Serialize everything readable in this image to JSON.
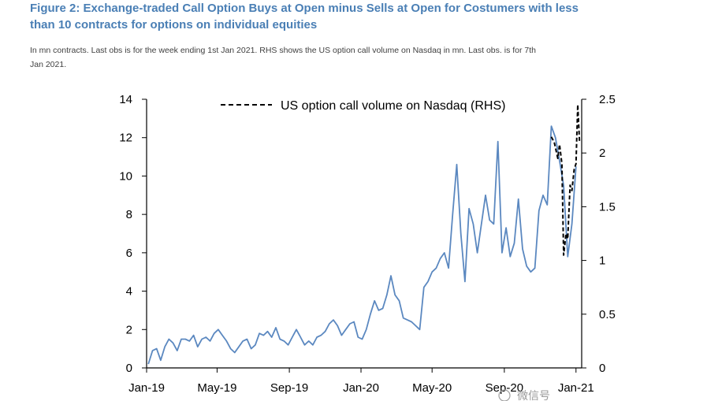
{
  "header": {
    "title_line1": "Figure 2: Exchange-traded Call Option Buys at Open minus Sells at Open for Costumers with less",
    "title_line2": "than 10 contracts for options on individual equities",
    "subtitle_line1": "In mn contracts. Last obs is for the week ending 1st Jan 2021. RHS shows the US option call volume on Nasdaq in mn. Last obs. is for 7th",
    "subtitle_line2": "Jan 2021."
  },
  "watermark": "微信号",
  "colors": {
    "series1": "#5b88c0",
    "series2": "#000000",
    "axis": "#000000"
  },
  "chart_data": {
    "type": "line",
    "title": "Figure 2: Exchange-traded Call Option Buys at Open minus Sells at Open for Costumers with less than 10 contracts for options on individual equities",
    "legend": {
      "placement": "top-center"
    },
    "grid": false,
    "x_range": [
      "2019-01-01",
      "2021-01-08"
    ],
    "x_ticks": [
      {
        "label": "Jan-19",
        "date": "2019-01-01"
      },
      {
        "label": "May-19",
        "date": "2019-05-01"
      },
      {
        "label": "Sep-19",
        "date": "2019-09-01"
      },
      {
        "label": "Jan-20",
        "date": "2020-01-01"
      },
      {
        "label": "May-20",
        "date": "2020-05-01"
      },
      {
        "label": "Sep-20",
        "date": "2020-09-01"
      },
      {
        "label": "Jan-21",
        "date": "2021-01-01"
      }
    ],
    "y_left": {
      "range": [
        0,
        14
      ],
      "ticks": [
        0,
        2,
        4,
        6,
        8,
        10,
        12,
        14
      ]
    },
    "y_right": {
      "range": [
        0,
        2.5
      ],
      "ticks": [
        "0",
        "0.5",
        "1",
        "1.5",
        "2",
        "2.5"
      ]
    },
    "series": [
      {
        "axis": "left",
        "style": "solid",
        "points": [
          [
            "2019-01-04",
            0.2
          ],
          [
            "2019-01-11",
            0.9
          ],
          [
            "2019-01-18",
            1.0
          ],
          [
            "2019-01-25",
            0.4
          ],
          [
            "2019-02-01",
            1.1
          ],
          [
            "2019-02-08",
            1.5
          ],
          [
            "2019-02-15",
            1.3
          ],
          [
            "2019-02-22",
            0.9
          ],
          [
            "2019-03-01",
            1.5
          ],
          [
            "2019-03-08",
            1.5
          ],
          [
            "2019-03-15",
            1.4
          ],
          [
            "2019-03-22",
            1.7
          ],
          [
            "2019-03-29",
            1.1
          ],
          [
            "2019-04-05",
            1.5
          ],
          [
            "2019-04-12",
            1.6
          ],
          [
            "2019-04-19",
            1.4
          ],
          [
            "2019-04-26",
            1.8
          ],
          [
            "2019-05-03",
            2.0
          ],
          [
            "2019-05-10",
            1.7
          ],
          [
            "2019-05-17",
            1.4
          ],
          [
            "2019-05-24",
            1.0
          ],
          [
            "2019-05-31",
            0.8
          ],
          [
            "2019-06-07",
            1.1
          ],
          [
            "2019-06-14",
            1.4
          ],
          [
            "2019-06-21",
            1.5
          ],
          [
            "2019-06-28",
            1.0
          ],
          [
            "2019-07-05",
            1.2
          ],
          [
            "2019-07-12",
            1.8
          ],
          [
            "2019-07-19",
            1.7
          ],
          [
            "2019-07-26",
            1.9
          ],
          [
            "2019-08-02",
            1.6
          ],
          [
            "2019-08-09",
            2.1
          ],
          [
            "2019-08-16",
            1.5
          ],
          [
            "2019-08-23",
            1.4
          ],
          [
            "2019-08-30",
            1.2
          ],
          [
            "2019-09-06",
            1.6
          ],
          [
            "2019-09-13",
            2.0
          ],
          [
            "2019-09-20",
            1.6
          ],
          [
            "2019-09-27",
            1.2
          ],
          [
            "2019-10-04",
            1.4
          ],
          [
            "2019-10-11",
            1.2
          ],
          [
            "2019-10-18",
            1.6
          ],
          [
            "2019-10-25",
            1.7
          ],
          [
            "2019-11-01",
            1.9
          ],
          [
            "2019-11-08",
            2.3
          ],
          [
            "2019-11-15",
            2.5
          ],
          [
            "2019-11-22",
            2.2
          ],
          [
            "2019-11-29",
            1.7
          ],
          [
            "2019-12-06",
            2.0
          ],
          [
            "2019-12-13",
            2.3
          ],
          [
            "2019-12-20",
            2.4
          ],
          [
            "2019-12-27",
            1.6
          ],
          [
            "2020-01-03",
            1.5
          ],
          [
            "2020-01-10",
            2.0
          ],
          [
            "2020-01-17",
            2.8
          ],
          [
            "2020-01-24",
            3.5
          ],
          [
            "2020-01-31",
            3.0
          ],
          [
            "2020-02-07",
            3.1
          ],
          [
            "2020-02-14",
            3.8
          ],
          [
            "2020-02-21",
            4.8
          ],
          [
            "2020-02-28",
            3.8
          ],
          [
            "2020-03-06",
            3.5
          ],
          [
            "2020-03-13",
            2.6
          ],
          [
            "2020-03-20",
            2.5
          ],
          [
            "2020-03-27",
            2.4
          ],
          [
            "2020-04-03",
            2.2
          ],
          [
            "2020-04-10",
            2.0
          ],
          [
            "2020-04-17",
            4.2
          ],
          [
            "2020-04-24",
            4.5
          ],
          [
            "2020-05-01",
            5.0
          ],
          [
            "2020-05-08",
            5.2
          ],
          [
            "2020-05-15",
            5.7
          ],
          [
            "2020-05-22",
            6.0
          ],
          [
            "2020-05-29",
            5.2
          ],
          [
            "2020-06-05",
            8.0
          ],
          [
            "2020-06-12",
            10.6
          ],
          [
            "2020-06-19",
            7.0
          ],
          [
            "2020-06-26",
            4.5
          ],
          [
            "2020-07-03",
            8.3
          ],
          [
            "2020-07-10",
            7.5
          ],
          [
            "2020-07-17",
            6.0
          ],
          [
            "2020-07-24",
            7.5
          ],
          [
            "2020-07-31",
            9.0
          ],
          [
            "2020-08-07",
            7.7
          ],
          [
            "2020-08-14",
            7.5
          ],
          [
            "2020-08-21",
            11.8
          ],
          [
            "2020-08-28",
            6.0
          ],
          [
            "2020-09-04",
            7.3
          ],
          [
            "2020-09-11",
            5.8
          ],
          [
            "2020-09-18",
            6.5
          ],
          [
            "2020-09-25",
            8.8
          ],
          [
            "2020-10-02",
            6.2
          ],
          [
            "2020-10-09",
            5.3
          ],
          [
            "2020-10-16",
            5.0
          ],
          [
            "2020-10-23",
            5.2
          ],
          [
            "2020-10-30",
            8.2
          ],
          [
            "2020-11-06",
            9.0
          ],
          [
            "2020-11-13",
            8.5
          ],
          [
            "2020-11-20",
            12.6
          ],
          [
            "2020-11-27",
            12.0
          ],
          [
            "2020-12-04",
            10.8
          ],
          [
            "2020-12-11",
            9.5
          ],
          [
            "2020-12-18",
            5.8
          ],
          [
            "2020-12-25",
            7.5
          ],
          [
            "2021-01-01",
            10.5
          ]
        ]
      },
      {
        "name": "US option call volume on Nasdaq (RHS)",
        "axis": "right",
        "style": "dashed",
        "points": [
          [
            "2020-11-20",
            2.15
          ],
          [
            "2020-11-25",
            2.1
          ],
          [
            "2020-12-01",
            1.95
          ],
          [
            "2020-12-04",
            2.08
          ],
          [
            "2020-12-08",
            1.9
          ],
          [
            "2020-12-11",
            1.05
          ],
          [
            "2020-12-15",
            1.25
          ],
          [
            "2020-12-18",
            1.2
          ],
          [
            "2020-12-22",
            1.7
          ],
          [
            "2020-12-25",
            1.65
          ],
          [
            "2020-12-29",
            1.85
          ],
          [
            "2021-01-01",
            1.9
          ],
          [
            "2021-01-04",
            2.45
          ],
          [
            "2021-01-07",
            2.1
          ]
        ]
      }
    ]
  }
}
